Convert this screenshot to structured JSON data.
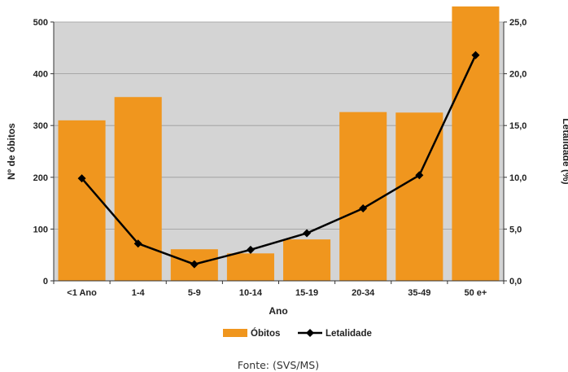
{
  "chart_data": {
    "type": "bar+line",
    "categories": [
      "<1 Ano",
      "1-4",
      "5-9",
      "10-14",
      "15-19",
      "20-34",
      "35-49",
      "50 e+"
    ],
    "series": [
      {
        "name": "Óbitos",
        "type": "bar",
        "axis": "left",
        "color": "#F0961E",
        "values": [
          310,
          355,
          61,
          53,
          80,
          326,
          325,
          530
        ]
      },
      {
        "name": "Letalidade",
        "type": "line",
        "axis": "right",
        "color": "#000000",
        "values": [
          9.9,
          3.6,
          1.6,
          3.0,
          4.6,
          7.0,
          10.2,
          21.8
        ]
      }
    ],
    "xlabel": "Ano",
    "ylabel": "Nº de óbitos",
    "y2label": "Letalidade (%)",
    "ylim": [
      0,
      500
    ],
    "y2lim": [
      0,
      25
    ],
    "yticks": [
      "0",
      "100",
      "200",
      "300",
      "400",
      "500"
    ],
    "y2ticks": [
      "0,0",
      "5,0",
      "10,0",
      "15,0",
      "20,0",
      "25,0"
    ],
    "grid": true,
    "legend_position": "bottom",
    "plot_background": "#D4D4D4"
  },
  "source": "Fonte: (SVS/MS)"
}
